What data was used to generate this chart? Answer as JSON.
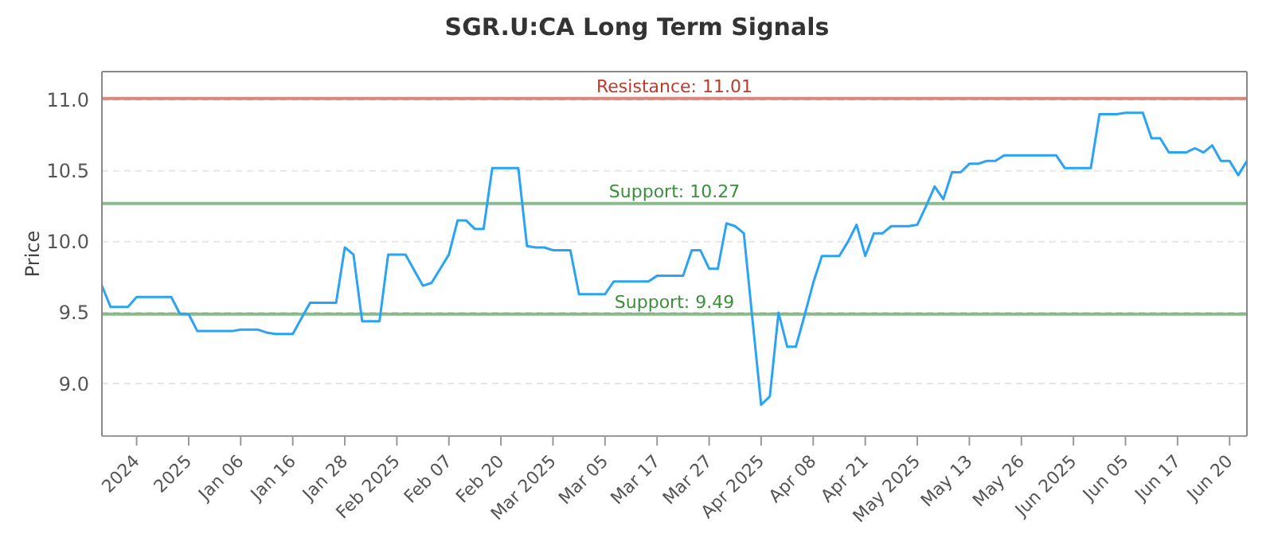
{
  "chart_data": {
    "type": "line",
    "title": "SGR.U:CA Long Term Signals",
    "ylabel": "Price",
    "categories": [
      null,
      null,
      null,
      null,
      "2024",
      null,
      null,
      null,
      null,
      null,
      "2025",
      null,
      null,
      null,
      null,
      null,
      "Jan 06",
      null,
      null,
      null,
      null,
      null,
      "Jan 16",
      null,
      null,
      null,
      null,
      null,
      "Jan 28",
      null,
      null,
      null,
      null,
      null,
      "Feb 2025",
      null,
      null,
      null,
      null,
      null,
      "Feb 07",
      null,
      null,
      null,
      null,
      null,
      "Feb 20",
      null,
      null,
      null,
      null,
      null,
      "Mar 2025",
      null,
      null,
      null,
      null,
      null,
      "Mar 05",
      null,
      null,
      null,
      null,
      null,
      "Mar 17",
      null,
      null,
      null,
      null,
      null,
      "Mar 27",
      null,
      null,
      null,
      null,
      null,
      "Apr 2025",
      null,
      null,
      null,
      null,
      null,
      "Apr 08",
      null,
      null,
      null,
      null,
      null,
      "Apr 21",
      null,
      null,
      null,
      null,
      null,
      "May 2025",
      null,
      null,
      null,
      null,
      null,
      "May 13",
      null,
      null,
      null,
      null,
      null,
      "May 26",
      null,
      null,
      null,
      null,
      null,
      "Jun 2025",
      null,
      null,
      null,
      null,
      null,
      "Jun 05",
      null,
      null,
      null,
      null,
      null,
      "Jun 17",
      null,
      null,
      null,
      null,
      null,
      "Jun 20",
      null,
      null
    ],
    "series": [
      {
        "color": "#2aa3f5",
        "values": [
          9.69,
          9.54,
          9.54,
          9.54,
          9.61,
          9.61,
          9.61,
          9.61,
          9.61,
          9.49,
          9.49,
          9.37,
          9.37,
          9.37,
          9.37,
          9.37,
          9.38,
          9.38,
          9.38,
          9.36,
          9.35,
          9.35,
          9.35,
          9.46,
          9.57,
          9.57,
          9.57,
          9.57,
          9.96,
          9.91,
          9.44,
          9.44,
          9.44,
          9.91,
          9.91,
          9.91,
          9.8,
          9.69,
          9.71,
          9.81,
          9.91,
          10.15,
          10.15,
          10.09,
          10.09,
          10.52,
          10.52,
          10.52,
          10.52,
          9.97,
          9.96,
          9.96,
          9.94,
          9.94,
          9.94,
          9.63,
          9.63,
          9.63,
          9.63,
          9.72,
          9.72,
          9.72,
          9.72,
          9.72,
          9.76,
          9.76,
          9.76,
          9.76,
          9.94,
          9.94,
          9.81,
          9.81,
          10.13,
          10.11,
          10.06,
          9.45,
          8.85,
          8.91,
          9.5,
          9.26,
          9.26,
          9.48,
          9.71,
          9.9,
          9.9,
          9.9,
          10.0,
          10.12,
          9.9,
          10.06,
          10.06,
          10.11,
          10.11,
          10.11,
          10.12,
          10.25,
          10.39,
          10.3,
          10.49,
          10.49,
          10.55,
          10.55,
          10.57,
          10.57,
          10.61,
          10.61,
          10.61,
          10.61,
          10.61,
          10.61,
          10.61,
          10.52,
          10.52,
          10.52,
          10.52,
          10.9,
          10.9,
          10.9,
          10.91,
          10.91,
          10.91,
          10.73,
          10.73,
          10.63,
          10.63,
          10.63,
          10.66,
          10.63,
          10.68,
          10.57,
          10.57,
          10.47,
          10.57
        ]
      }
    ],
    "ylim": [
      8.63,
      11.2
    ],
    "yticks": [
      {
        "value": 9,
        "label": "9.0"
      },
      {
        "value": 9.5,
        "label": "9.5"
      },
      {
        "value": 10,
        "label": "10.0"
      },
      {
        "value": 10.5,
        "label": "10.5"
      },
      {
        "value": 11,
        "label": "11.0"
      }
    ],
    "grid": "y",
    "legend": false,
    "marker": "none",
    "line_style": "solid",
    "ref_lines": [
      {
        "axis": "y",
        "value": 11.01,
        "label": "Resistance: 11.01",
        "color": "#c0392b"
      },
      {
        "axis": "y",
        "value": 10.27,
        "label": "Support: 10.27",
        "color": "#3a8f3a"
      },
      {
        "axis": "y",
        "value": 9.49,
        "label": "Support: 9.49",
        "color": "#3a8f3a"
      }
    ]
  }
}
